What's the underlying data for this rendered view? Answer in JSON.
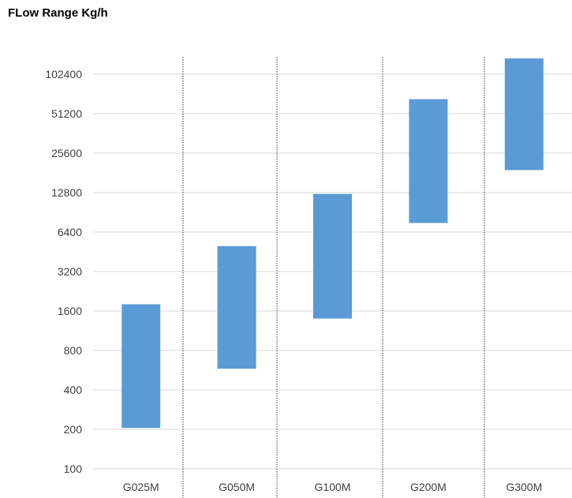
{
  "chart_data": {
    "type": "bar",
    "subtype": "floating-range",
    "title": "FLow Range Kg/h",
    "categories": [
      "G025M",
      "G050M",
      "G100M",
      "G200M",
      "G300M"
    ],
    "ranges": [
      {
        "low": 205,
        "high": 1800
      },
      {
        "low": 580,
        "high": 5000
      },
      {
        "low": 1400,
        "high": 12500
      },
      {
        "low": 7500,
        "high": 66000
      },
      {
        "low": 19000,
        "high": 135000
      }
    ],
    "y_scale": "log2",
    "ylim": [
      100,
      160000
    ],
    "y_ticks": [
      "100",
      "200",
      "400",
      "800",
      "1600",
      "3200",
      "6400",
      "12800",
      "25600",
      "51200",
      "102400"
    ],
    "xlabel": "",
    "ylabel": "",
    "grid": true,
    "legend": "none",
    "bar_color": "#5B9BD5",
    "grid_color": "#D9D9D9",
    "separator_color": "#595959"
  }
}
